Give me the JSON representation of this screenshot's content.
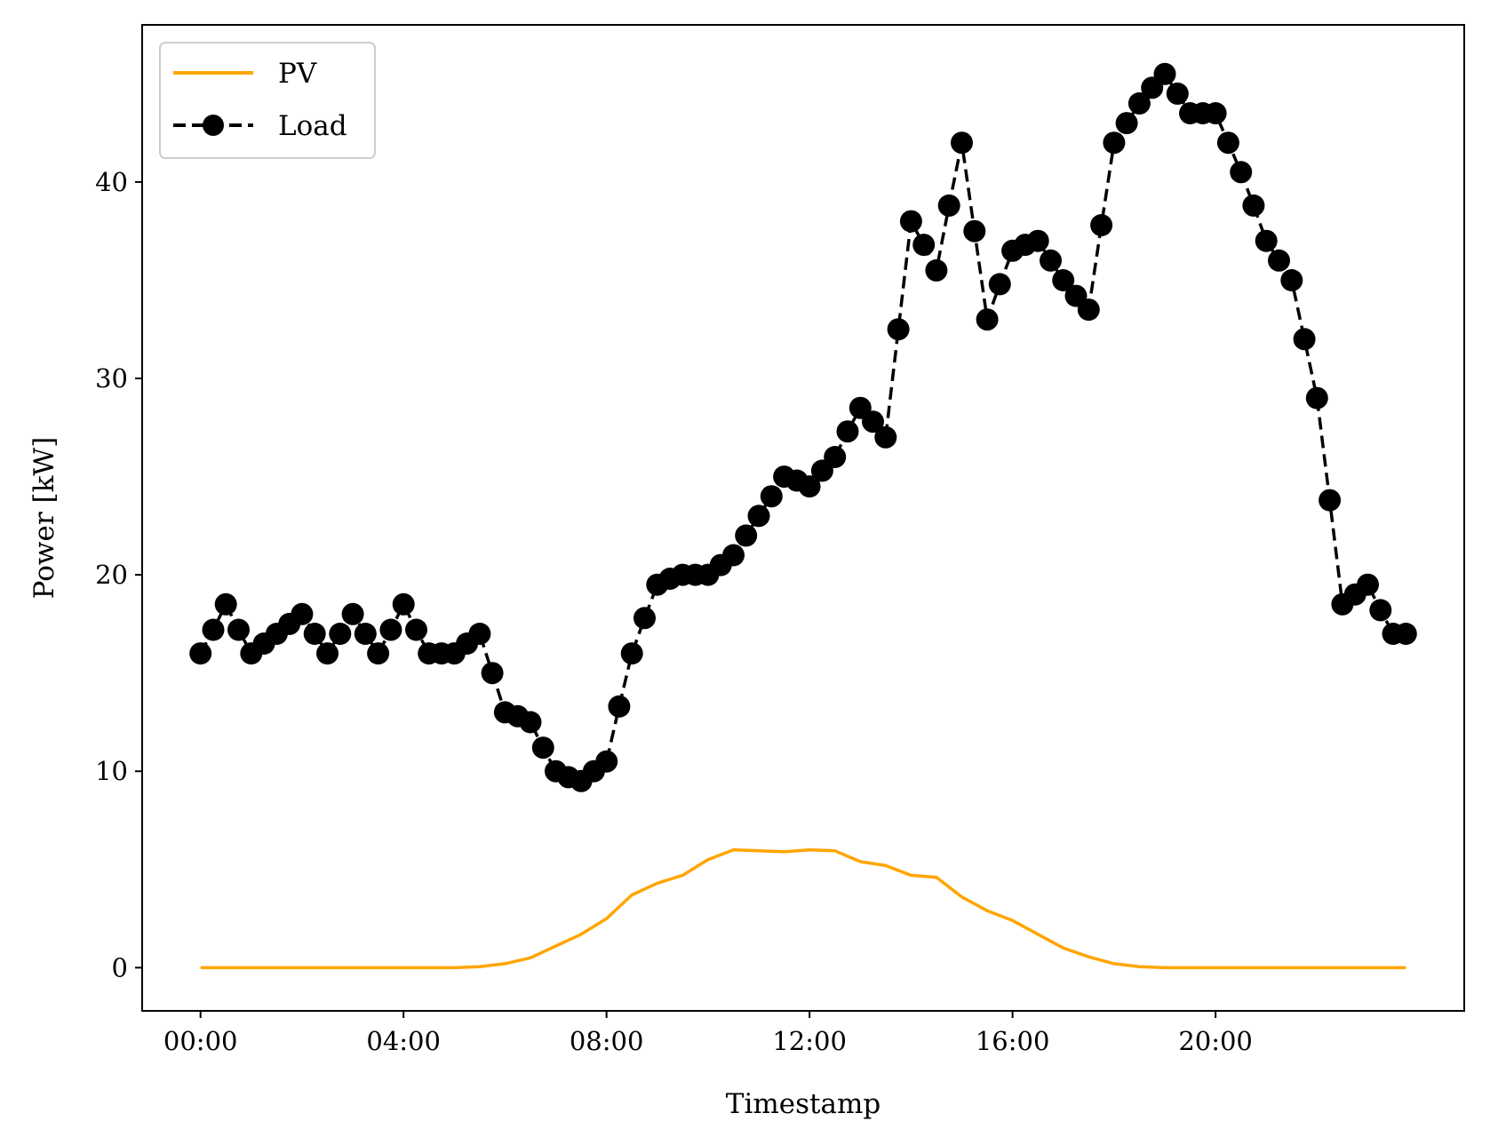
{
  "chart_data": {
    "type": "line",
    "title": "",
    "xlabel": "Timestamp",
    "ylabel": "Power [kW]",
    "x_tick_labels": [
      "00:00",
      "04:00",
      "08:00",
      "12:00",
      "16:00",
      "20:00"
    ],
    "y_tick_labels": [
      "0",
      "10",
      "20",
      "30",
      "40"
    ],
    "x_range_hours": [
      -1.15,
      24.9
    ],
    "ylim": [
      -2.2,
      48
    ],
    "grid": false,
    "legend_position": "top-left",
    "colors": {
      "pv": "#FFA500",
      "load": "#000000"
    },
    "series": [
      {
        "name": "PV",
        "style": "solid line",
        "x_hours": [
          0,
          0.5,
          1,
          1.5,
          2,
          2.5,
          3,
          3.5,
          4,
          4.5,
          5,
          5.5,
          6,
          6.5,
          7,
          7.5,
          8,
          8.5,
          9,
          9.5,
          10,
          10.5,
          11,
          11.5,
          12,
          12.5,
          13,
          13.5,
          14,
          14.5,
          15,
          15.5,
          16,
          16.5,
          17,
          17.5,
          18,
          18.5,
          19,
          19.5,
          20,
          20.5,
          21,
          21.5,
          22,
          22.5,
          23,
          23.5,
          23.75
        ],
        "values": [
          0,
          0,
          0,
          0,
          0,
          0,
          0,
          0,
          0,
          0,
          0,
          0.05,
          0.2,
          0.5,
          1.1,
          1.7,
          2.5,
          3.7,
          4.3,
          4.7,
          5.5,
          6.0,
          5.95,
          5.9,
          6.0,
          5.95,
          5.4,
          5.2,
          4.7,
          4.6,
          3.6,
          2.9,
          2.4,
          1.7,
          1.0,
          0.55,
          0.2,
          0.05,
          0,
          0,
          0,
          0,
          0,
          0,
          0,
          0,
          0,
          0,
          0
        ]
      },
      {
        "name": "Load",
        "style": "dashed line with circle markers",
        "x_hours": [
          0,
          0.25,
          0.5,
          0.75,
          1,
          1.25,
          1.5,
          1.75,
          2,
          2.25,
          2.5,
          2.75,
          3,
          3.25,
          3.5,
          3.75,
          4,
          4.25,
          4.5,
          4.75,
          5,
          5.25,
          5.5,
          5.75,
          6,
          6.25,
          6.5,
          6.75,
          7,
          7.25,
          7.5,
          7.75,
          8,
          8.25,
          8.5,
          8.75,
          9,
          9.25,
          9.5,
          9.75,
          10,
          10.25,
          10.5,
          10.75,
          11,
          11.25,
          11.5,
          11.75,
          12,
          12.25,
          12.5,
          12.75,
          13,
          13.25,
          13.5,
          13.75,
          14,
          14.25,
          14.5,
          14.75,
          15,
          15.25,
          15.5,
          15.75,
          16,
          16.25,
          16.5,
          16.75,
          17,
          17.25,
          17.5,
          17.75,
          18,
          18.25,
          18.5,
          18.75,
          19,
          19.25,
          19.5,
          19.75,
          20,
          20.25,
          20.5,
          20.75,
          21,
          21.25,
          21.5,
          21.75,
          22,
          22.25,
          22.5,
          22.75,
          23,
          23.25,
          23.5,
          23.75
        ],
        "values": [
          16.0,
          17.2,
          18.5,
          17.2,
          16.0,
          16.5,
          17.0,
          17.5,
          18.0,
          17.0,
          16.0,
          17.0,
          18.0,
          17.0,
          16.0,
          17.2,
          18.5,
          17.2,
          16.0,
          16.0,
          16.0,
          16.5,
          17.0,
          15.0,
          13.0,
          12.8,
          12.5,
          11.2,
          10.0,
          9.7,
          9.5,
          10.0,
          10.5,
          13.3,
          16.0,
          17.8,
          19.5,
          19.8,
          20.0,
          20.0,
          20.0,
          20.5,
          21.0,
          22.0,
          23.0,
          24.0,
          25.0,
          24.8,
          24.5,
          25.3,
          26.0,
          27.3,
          28.5,
          27.8,
          27.0,
          32.5,
          38.0,
          36.8,
          35.5,
          38.8,
          42.0,
          37.5,
          33.0,
          34.8,
          36.5,
          36.8,
          37.0,
          36.0,
          35.0,
          34.2,
          33.5,
          37.8,
          42.0,
          43.0,
          44.0,
          44.8,
          45.5,
          44.5,
          43.5,
          43.5,
          43.5,
          42.0,
          40.5,
          38.8,
          37.0,
          36.0,
          35.0,
          32.0,
          29.0,
          23.8,
          18.5,
          19.0,
          19.5,
          18.2,
          17.0,
          17.0
        ]
      }
    ]
  }
}
